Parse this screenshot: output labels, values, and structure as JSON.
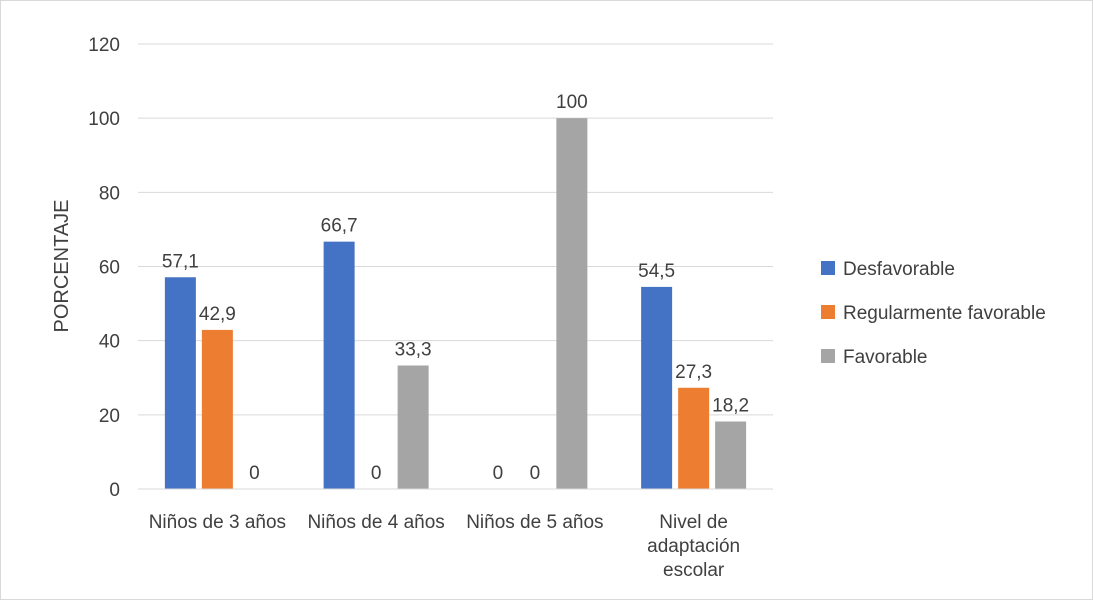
{
  "chart_data": {
    "type": "bar",
    "ylabel": "PORCENTAJE",
    "xlabel": "",
    "ylim": [
      0,
      120
    ],
    "yticks": [
      0,
      20,
      40,
      60,
      80,
      100,
      120
    ],
    "grid": true,
    "legend_position": "right",
    "categories": [
      [
        "Niños de 3 años"
      ],
      [
        "Niños de 4 años"
      ],
      [
        "Niños de 5 años"
      ],
      [
        "Nivel de",
        "adaptación",
        "escolar"
      ]
    ],
    "series": [
      {
        "name": "Desfavorable",
        "color": "#4472C4",
        "values": [
          57.1,
          66.7,
          0,
          54.5
        ],
        "labels": [
          "57,1",
          "66,7",
          "0",
          "54,5"
        ]
      },
      {
        "name": "Regularmente favorable",
        "color": "#ED7D31",
        "values": [
          42.9,
          0,
          0,
          27.3
        ],
        "labels": [
          "42,9",
          "0",
          "0",
          "27,3"
        ]
      },
      {
        "name": "Favorable",
        "color": "#A5A5A5",
        "values": [
          0,
          33.3,
          100,
          18.2
        ],
        "labels": [
          "0",
          "33,3",
          "100",
          "18,2"
        ]
      }
    ]
  }
}
